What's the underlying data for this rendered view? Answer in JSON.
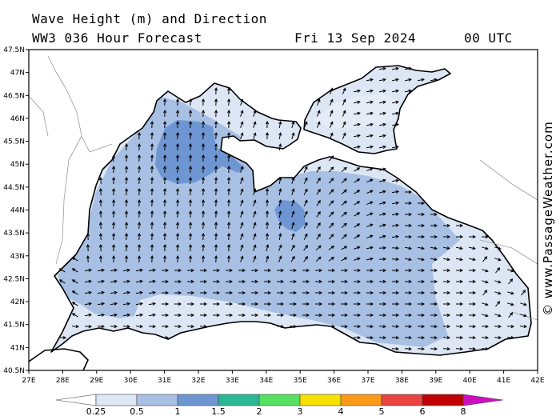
{
  "title": {
    "line1": "Wave Height (m) and Direction",
    "model": "WW3 036 Hour Forecast",
    "date": "Fri 13 Sep 2024",
    "time": "00 UTC"
  },
  "credit": "© www.PassageWeather.com",
  "lat_labels": [
    "47.5N",
    "47N",
    "46.5N",
    "46N",
    "45.5N",
    "45N",
    "44.5N",
    "44N",
    "43.5N",
    "43N",
    "42.5N",
    "42N",
    "41.5N",
    "41N",
    "40.5N"
  ],
  "lon_labels": [
    "27E",
    "28E",
    "29E",
    "30E",
    "31E",
    "32E",
    "33E",
    "34E",
    "35E",
    "36E",
    "37E",
    "38E",
    "39E",
    "40E",
    "41E",
    "42E"
  ],
  "colorbar": {
    "labels": [
      "0.25",
      "0.5",
      "1",
      "1.5",
      "2",
      "3",
      "4",
      "5",
      "6",
      "8"
    ],
    "colors": [
      "#dde6f4",
      "#a8c0e4",
      "#6e96d2",
      "#2bb894",
      "#55e060",
      "#f7e100",
      "#fb9a18",
      "#e84242",
      "#c00000",
      "#cc10c0"
    ]
  },
  "legend_colors": {
    "land": "#ffffff",
    "coast": "#000000",
    "arrow": "#000000"
  },
  "chart_data": {
    "type": "map",
    "field": "wave height (m) and direction",
    "region": "Black Sea and Sea of Azov",
    "lon_range": [
      27,
      42
    ],
    "lat_range": [
      40.5,
      47.5
    ],
    "dominant_direction": "arrows point north in the west-central basin, eastward in the south and east",
    "max_height_areas": [
      "NW shelf near 31.5E 45.3N (1-1.5 m)",
      "south of Crimea near 34.8E 43.8N (1-1.5 m)"
    ]
  }
}
